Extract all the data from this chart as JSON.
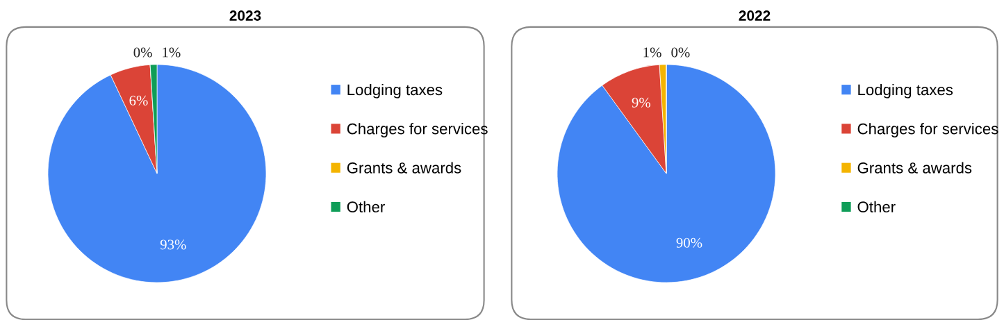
{
  "chart_data": [
    {
      "type": "pie",
      "title": "2023",
      "categories": [
        "Lodging taxes",
        "Charges for services",
        "Grants & awards",
        "Other"
      ],
      "values": [
        93,
        6,
        0,
        1
      ],
      "value_labels": [
        "93%",
        "6%",
        "0%",
        "1%"
      ],
      "colors": [
        "#4285f4",
        "#db4437",
        "#f4b400",
        "#0f9d58"
      ],
      "legend": "right"
    },
    {
      "type": "pie",
      "title": "2022",
      "categories": [
        "Lodging taxes",
        "Charges for services",
        "Grants & awards",
        "Other"
      ],
      "values": [
        90,
        9,
        1,
        0
      ],
      "value_labels": [
        "90%",
        "9%",
        "1%",
        "0%"
      ],
      "colors": [
        "#4285f4",
        "#db4437",
        "#f4b400",
        "#0f9d58"
      ],
      "legend": "right"
    }
  ]
}
